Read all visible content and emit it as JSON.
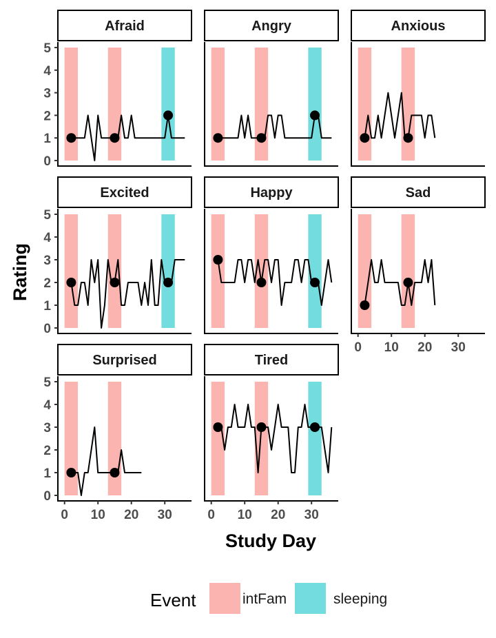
{
  "chart_data": {
    "type": "line",
    "facet_by": "emotion",
    "xlabel": "Study Day",
    "ylabel": "Rating",
    "xlim": [
      -2,
      38
    ],
    "ylim": [
      0,
      5
    ],
    "x_ticks": [
      0,
      10,
      20,
      30
    ],
    "y_ticks": [
      0,
      1,
      2,
      3,
      4,
      5
    ],
    "legend": {
      "title": "Event",
      "position": "bottom",
      "entries": [
        {
          "key": "intFam",
          "label": "intFam",
          "color": "#F8766D"
        },
        {
          "key": "sleeping",
          "label": "sleeping",
          "color": "#00BFC4"
        }
      ]
    },
    "line_color": "#000000",
    "point_color": "#000000",
    "panels": [
      {
        "label": "Afraid",
        "events": [
          {
            "event": "intFam",
            "start": 0,
            "end": 4
          },
          {
            "event": "intFam",
            "start": 13,
            "end": 17
          },
          {
            "event": "sleeping",
            "start": 29,
            "end": 33
          }
        ],
        "series": [
          [
            2,
            1
          ],
          [
            3,
            1
          ],
          [
            4,
            1
          ],
          [
            5,
            1
          ],
          [
            6,
            1
          ],
          [
            7,
            2
          ],
          [
            8,
            1
          ],
          [
            9,
            0
          ],
          [
            10,
            2
          ],
          [
            11,
            1
          ],
          [
            12,
            1
          ],
          [
            13,
            1
          ],
          [
            14,
            1
          ],
          [
            15,
            1
          ],
          [
            16,
            1
          ],
          [
            17,
            2
          ],
          [
            18,
            1
          ],
          [
            19,
            1
          ],
          [
            20,
            2
          ],
          [
            21,
            1
          ],
          [
            22,
            1
          ],
          [
            23,
            1
          ],
          [
            24,
            1
          ],
          [
            25,
            1
          ],
          [
            26,
            1
          ],
          [
            27,
            1
          ],
          [
            28,
            1
          ],
          [
            29,
            1
          ],
          [
            30,
            1
          ],
          [
            31,
            2
          ],
          [
            32,
            1
          ],
          [
            33,
            1
          ],
          [
            34,
            1
          ],
          [
            35,
            1
          ],
          [
            36,
            1
          ]
        ],
        "points": [
          [
            2,
            1
          ],
          [
            15,
            1
          ],
          [
            31,
            2
          ]
        ]
      },
      {
        "label": "Angry",
        "events": [
          {
            "event": "intFam",
            "start": 0,
            "end": 4
          },
          {
            "event": "intFam",
            "start": 13,
            "end": 17
          },
          {
            "event": "sleeping",
            "start": 29,
            "end": 33
          }
        ],
        "series": [
          [
            2,
            1
          ],
          [
            3,
            1
          ],
          [
            4,
            1
          ],
          [
            5,
            1
          ],
          [
            6,
            1
          ],
          [
            7,
            1
          ],
          [
            8,
            1
          ],
          [
            9,
            2
          ],
          [
            10,
            1
          ],
          [
            11,
            2
          ],
          [
            12,
            1
          ],
          [
            13,
            1
          ],
          [
            14,
            1
          ],
          [
            15,
            1
          ],
          [
            16,
            1
          ],
          [
            17,
            2
          ],
          [
            18,
            2
          ],
          [
            19,
            1
          ],
          [
            20,
            2
          ],
          [
            21,
            2
          ],
          [
            22,
            1
          ],
          [
            23,
            1
          ],
          [
            24,
            1
          ],
          [
            25,
            1
          ],
          [
            26,
            1
          ],
          [
            27,
            1
          ],
          [
            28,
            1
          ],
          [
            29,
            1
          ],
          [
            30,
            1
          ],
          [
            31,
            2
          ],
          [
            32,
            2
          ],
          [
            33,
            1
          ],
          [
            34,
            1
          ],
          [
            35,
            1
          ],
          [
            36,
            1
          ]
        ],
        "points": [
          [
            2,
            1
          ],
          [
            15,
            1
          ],
          [
            31,
            2
          ]
        ]
      },
      {
        "label": "Anxious",
        "events": [
          {
            "event": "intFam",
            "start": 0,
            "end": 4
          },
          {
            "event": "intFam",
            "start": 13,
            "end": 17
          }
        ],
        "series": [
          [
            2,
            1
          ],
          [
            3,
            2
          ],
          [
            4,
            1
          ],
          [
            5,
            1
          ],
          [
            6,
            2
          ],
          [
            7,
            1
          ],
          [
            8,
            2
          ],
          [
            9,
            3
          ],
          [
            10,
            2
          ],
          [
            11,
            1
          ],
          [
            12,
            2
          ],
          [
            13,
            3
          ],
          [
            14,
            1
          ],
          [
            15,
            1
          ],
          [
            16,
            2
          ],
          [
            17,
            2
          ],
          [
            18,
            2
          ],
          [
            19,
            2
          ],
          [
            20,
            1
          ],
          [
            21,
            2
          ],
          [
            22,
            2
          ],
          [
            23,
            1
          ]
        ],
        "points": [
          [
            2,
            1
          ],
          [
            15,
            1
          ]
        ]
      },
      {
        "label": "Excited",
        "events": [
          {
            "event": "intFam",
            "start": 0,
            "end": 4
          },
          {
            "event": "intFam",
            "start": 13,
            "end": 17
          },
          {
            "event": "sleeping",
            "start": 29,
            "end": 33
          }
        ],
        "series": [
          [
            2,
            2
          ],
          [
            3,
            1
          ],
          [
            4,
            1
          ],
          [
            5,
            2
          ],
          [
            6,
            2
          ],
          [
            7,
            1
          ],
          [
            8,
            3
          ],
          [
            9,
            2
          ],
          [
            10,
            3
          ],
          [
            11,
            0
          ],
          [
            12,
            1
          ],
          [
            13,
            3
          ],
          [
            14,
            2
          ],
          [
            15,
            2
          ],
          [
            16,
            3
          ],
          [
            17,
            1
          ],
          [
            18,
            1
          ],
          [
            19,
            2
          ],
          [
            20,
            2
          ],
          [
            21,
            2
          ],
          [
            22,
            2
          ],
          [
            23,
            1
          ],
          [
            24,
            2
          ],
          [
            25,
            1
          ],
          [
            26,
            3
          ],
          [
            27,
            1
          ],
          [
            28,
            1
          ],
          [
            29,
            3
          ],
          [
            30,
            2
          ],
          [
            31,
            2
          ],
          [
            32,
            2
          ],
          [
            33,
            3
          ],
          [
            34,
            3
          ],
          [
            35,
            3
          ],
          [
            36,
            3
          ]
        ],
        "points": [
          [
            2,
            2
          ],
          [
            15,
            2
          ],
          [
            31,
            2
          ]
        ]
      },
      {
        "label": "Happy",
        "events": [
          {
            "event": "intFam",
            "start": 0,
            "end": 4
          },
          {
            "event": "intFam",
            "start": 13,
            "end": 17
          },
          {
            "event": "sleeping",
            "start": 29,
            "end": 33
          }
        ],
        "series": [
          [
            2,
            3
          ],
          [
            3,
            2
          ],
          [
            4,
            2
          ],
          [
            5,
            2
          ],
          [
            6,
            2
          ],
          [
            7,
            2
          ],
          [
            8,
            3
          ],
          [
            9,
            3
          ],
          [
            10,
            2
          ],
          [
            11,
            3
          ],
          [
            12,
            3
          ],
          [
            13,
            2
          ],
          [
            14,
            3
          ],
          [
            15,
            2
          ],
          [
            16,
            3
          ],
          [
            17,
            3
          ],
          [
            18,
            2
          ],
          [
            19,
            3
          ],
          [
            20,
            3
          ],
          [
            21,
            1
          ],
          [
            22,
            2
          ],
          [
            23,
            2
          ],
          [
            24,
            2
          ],
          [
            25,
            3
          ],
          [
            26,
            3
          ],
          [
            27,
            2
          ],
          [
            28,
            3
          ],
          [
            29,
            3
          ],
          [
            30,
            2
          ],
          [
            31,
            2
          ],
          [
            32,
            2
          ],
          [
            33,
            1
          ],
          [
            34,
            2
          ],
          [
            35,
            3
          ],
          [
            36,
            2
          ]
        ],
        "points": [
          [
            2,
            3
          ],
          [
            15,
            2
          ],
          [
            31,
            2
          ]
        ]
      },
      {
        "label": "Sad",
        "events": [
          {
            "event": "intFam",
            "start": 0,
            "end": 4
          },
          {
            "event": "intFam",
            "start": 13,
            "end": 17
          }
        ],
        "series": [
          [
            2,
            1
          ],
          [
            3,
            2
          ],
          [
            4,
            3
          ],
          [
            5,
            2
          ],
          [
            6,
            2
          ],
          [
            7,
            3
          ],
          [
            8,
            2
          ],
          [
            9,
            2
          ],
          [
            10,
            2
          ],
          [
            11,
            2
          ],
          [
            12,
            2
          ],
          [
            13,
            1
          ],
          [
            14,
            1
          ],
          [
            15,
            2
          ],
          [
            16,
            1
          ],
          [
            17,
            2
          ],
          [
            18,
            2
          ],
          [
            19,
            2
          ],
          [
            20,
            3
          ],
          [
            21,
            2
          ],
          [
            22,
            3
          ],
          [
            23,
            1
          ]
        ],
        "points": [
          [
            2,
            1
          ],
          [
            15,
            2
          ]
        ]
      },
      {
        "label": "Surprised",
        "events": [
          {
            "event": "intFam",
            "start": 0,
            "end": 4
          },
          {
            "event": "intFam",
            "start": 13,
            "end": 17
          }
        ],
        "series": [
          [
            2,
            1
          ],
          [
            3,
            1
          ],
          [
            4,
            1
          ],
          [
            5,
            0
          ],
          [
            6,
            1
          ],
          [
            7,
            1
          ],
          [
            8,
            2
          ],
          [
            9,
            3
          ],
          [
            10,
            1
          ],
          [
            11,
            1
          ],
          [
            12,
            1
          ],
          [
            13,
            1
          ],
          [
            14,
            1
          ],
          [
            15,
            1
          ],
          [
            16,
            1
          ],
          [
            17,
            2
          ],
          [
            18,
            1
          ],
          [
            19,
            1
          ],
          [
            20,
            1
          ],
          [
            21,
            1
          ],
          [
            22,
            1
          ],
          [
            23,
            1
          ]
        ],
        "points": [
          [
            2,
            1
          ],
          [
            15,
            1
          ]
        ]
      },
      {
        "label": "Tired",
        "events": [
          {
            "event": "intFam",
            "start": 0,
            "end": 4
          },
          {
            "event": "intFam",
            "start": 13,
            "end": 17
          },
          {
            "event": "sleeping",
            "start": 29,
            "end": 33
          }
        ],
        "series": [
          [
            2,
            3
          ],
          [
            3,
            3
          ],
          [
            4,
            2
          ],
          [
            5,
            3
          ],
          [
            6,
            3
          ],
          [
            7,
            4
          ],
          [
            8,
            3
          ],
          [
            9,
            3
          ],
          [
            10,
            3
          ],
          [
            11,
            4
          ],
          [
            12,
            3
          ],
          [
            13,
            3
          ],
          [
            14,
            1
          ],
          [
            15,
            3
          ],
          [
            16,
            3
          ],
          [
            17,
            3
          ],
          [
            18,
            2
          ],
          [
            19,
            3
          ],
          [
            20,
            4
          ],
          [
            21,
            3
          ],
          [
            22,
            3
          ],
          [
            23,
            3
          ],
          [
            24,
            1
          ],
          [
            25,
            1
          ],
          [
            26,
            3
          ],
          [
            27,
            3
          ],
          [
            28,
            4
          ],
          [
            29,
            3
          ],
          [
            30,
            3
          ],
          [
            31,
            3
          ],
          [
            32,
            3
          ],
          [
            33,
            3
          ],
          [
            34,
            2
          ],
          [
            35,
            1
          ],
          [
            36,
            3
          ]
        ],
        "points": [
          [
            2,
            3
          ],
          [
            15,
            3
          ],
          [
            31,
            3
          ]
        ]
      }
    ]
  }
}
